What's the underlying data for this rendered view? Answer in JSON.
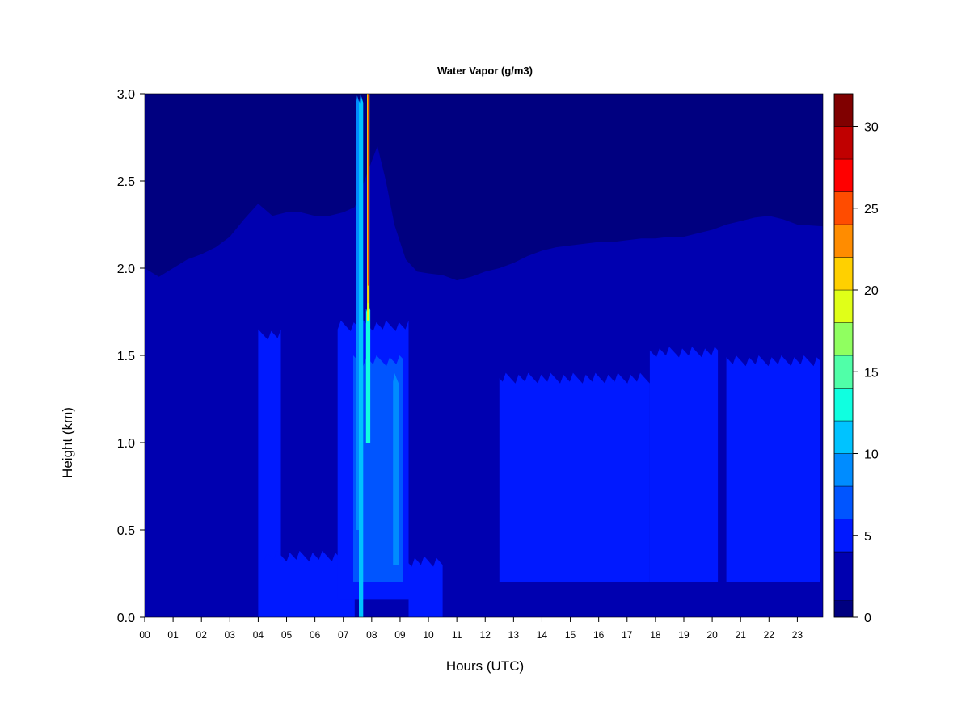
{
  "chart_data": {
    "type": "heatmap",
    "title": "Water Vapor (g/m3)",
    "xlabel": "Hours (UTC)",
    "ylabel": "Height (km)",
    "x_ticks": [
      "00",
      "01",
      "02",
      "03",
      "04",
      "05",
      "06",
      "07",
      "08",
      "09",
      "10",
      "11",
      "12",
      "13",
      "14",
      "15",
      "16",
      "17",
      "18",
      "19",
      "20",
      "21",
      "22",
      "23"
    ],
    "y_ticks": [
      "0.0",
      "0.5",
      "1.0",
      "1.5",
      "2.0",
      "2.5",
      "3.0"
    ],
    "xlim": [
      0,
      23.9
    ],
    "ylim": [
      0,
      3.0
    ],
    "colorbar": {
      "ticks": [
        "0",
        "5",
        "10",
        "15",
        "20",
        "25",
        "30"
      ],
      "tick_values": [
        0,
        5,
        10,
        15,
        20,
        25,
        30
      ],
      "range": [
        0,
        32
      ],
      "levels": [
        {
          "from": 0,
          "to": 1,
          "color": "#000080"
        },
        {
          "from": 1,
          "to": 4,
          "color": "#0000B0"
        },
        {
          "from": 4,
          "to": 6,
          "color": "#0019FF"
        },
        {
          "from": 6,
          "to": 8,
          "color": "#0055FF"
        },
        {
          "from": 8,
          "to": 10,
          "color": "#008CFF"
        },
        {
          "from": 10,
          "to": 12,
          "color": "#00C3FF"
        },
        {
          "from": 12,
          "to": 14,
          "color": "#10FFE0"
        },
        {
          "from": 14,
          "to": 16,
          "color": "#50FFA8"
        },
        {
          "from": 16,
          "to": 18,
          "color": "#90FF60"
        },
        {
          "from": 18,
          "to": 20,
          "color": "#E0FF18"
        },
        {
          "from": 20,
          "to": 22,
          "color": "#FFD000"
        },
        {
          "from": 22,
          "to": 24,
          "color": "#FF8C00"
        },
        {
          "from": 24,
          "to": 26,
          "color": "#FF4C00"
        },
        {
          "from": 26,
          "to": 28,
          "color": "#FF0000"
        },
        {
          "from": 28,
          "to": 30,
          "color": "#C00000"
        },
        {
          "from": 30,
          "to": 32,
          "color": "#800000"
        }
      ]
    },
    "background_level_color": "#0000B0",
    "upper_dry_color": "#000080",
    "dry_boundary_height_km": [
      [
        0.0,
        2.0
      ],
      [
        0.5,
        1.95
      ],
      [
        1.0,
        2.0
      ],
      [
        1.5,
        2.05
      ],
      [
        2.0,
        2.08
      ],
      [
        2.5,
        2.12
      ],
      [
        3.0,
        2.18
      ],
      [
        3.5,
        2.28
      ],
      [
        4.0,
        2.37
      ],
      [
        4.5,
        2.3
      ],
      [
        5.0,
        2.32
      ],
      [
        5.5,
        2.32
      ],
      [
        6.0,
        2.3
      ],
      [
        6.5,
        2.3
      ],
      [
        7.0,
        2.32
      ],
      [
        7.4,
        2.35
      ],
      [
        8.2,
        2.7
      ],
      [
        8.5,
        2.5
      ],
      [
        8.8,
        2.25
      ],
      [
        9.2,
        2.05
      ],
      [
        9.6,
        1.98
      ],
      [
        10.0,
        1.97
      ],
      [
        10.5,
        1.96
      ],
      [
        11.0,
        1.93
      ],
      [
        11.5,
        1.95
      ],
      [
        12.0,
        1.98
      ],
      [
        12.5,
        2.0
      ],
      [
        13.0,
        2.03
      ],
      [
        13.5,
        2.07
      ],
      [
        14.0,
        2.1
      ],
      [
        14.5,
        2.12
      ],
      [
        15.0,
        2.13
      ],
      [
        15.5,
        2.14
      ],
      [
        16.0,
        2.15
      ],
      [
        16.5,
        2.15
      ],
      [
        17.0,
        2.16
      ],
      [
        17.5,
        2.17
      ],
      [
        18.0,
        2.17
      ],
      [
        18.5,
        2.18
      ],
      [
        19.0,
        2.18
      ],
      [
        19.5,
        2.2
      ],
      [
        20.0,
        2.22
      ],
      [
        20.5,
        2.25
      ],
      [
        21.0,
        2.27
      ],
      [
        21.5,
        2.29
      ],
      [
        22.0,
        2.3
      ],
      [
        22.5,
        2.28
      ],
      [
        23.0,
        2.25
      ],
      [
        23.9,
        2.24
      ]
    ],
    "moist_regions": [
      {
        "level_color": "#0019FF",
        "x_from": 4.0,
        "x_to": 4.8,
        "h_from": 0.0,
        "h_to": 1.65
      },
      {
        "level_color": "#0019FF",
        "x_from": 4.2,
        "x_to": 7.4,
        "h_from": 0.0,
        "h_to": 0.38
      },
      {
        "level_color": "#0019FF",
        "x_from": 6.8,
        "x_to": 9.3,
        "h_from": 0.1,
        "h_to": 1.7
      },
      {
        "level_color": "#0019FF",
        "x_from": 9.3,
        "x_to": 10.5,
        "h_from": 0.0,
        "h_to": 0.35
      },
      {
        "level_color": "#0019FF",
        "x_from": 12.5,
        "x_to": 17.8,
        "h_from": 0.2,
        "h_to": 1.4
      },
      {
        "level_color": "#0019FF",
        "x_from": 17.8,
        "x_to": 20.2,
        "h_from": 0.2,
        "h_to": 1.55
      },
      {
        "level_color": "#0019FF",
        "x_from": 20.5,
        "x_to": 23.8,
        "h_from": 0.2,
        "h_to": 1.5
      },
      {
        "level_color": "#0055FF",
        "x_from": 7.35,
        "x_to": 9.1,
        "h_from": 0.2,
        "h_to": 1.5
      },
      {
        "level_color": "#008CFF",
        "x_from": 7.45,
        "x_to": 7.6,
        "h_from": 0.5,
        "h_to": 3.0
      },
      {
        "level_color": "#008CFF",
        "x_from": 8.75,
        "x_to": 8.95,
        "h_from": 0.3,
        "h_to": 1.4
      },
      {
        "level_color": "#00C3FF",
        "x_from": 7.55,
        "x_to": 7.7,
        "h_from": 0.0,
        "h_to": 3.0
      },
      {
        "level_color": "#10FFE0",
        "x_from": 7.8,
        "x_to": 7.95,
        "h_from": 1.0,
        "h_to": 1.8
      }
    ],
    "plume": {
      "x_center": 7.88,
      "levels": [
        {
          "color": "#E0FF18",
          "width_h": 0.09,
          "h_from": 1.7,
          "h_to": 3.0
        },
        {
          "color": "#FFD000",
          "width_h": 0.07,
          "h_from": 1.8,
          "h_to": 3.0
        },
        {
          "color": "#FF4C00",
          "width_h": 0.04,
          "h_from": 1.9,
          "h_to": 3.0
        }
      ]
    }
  }
}
